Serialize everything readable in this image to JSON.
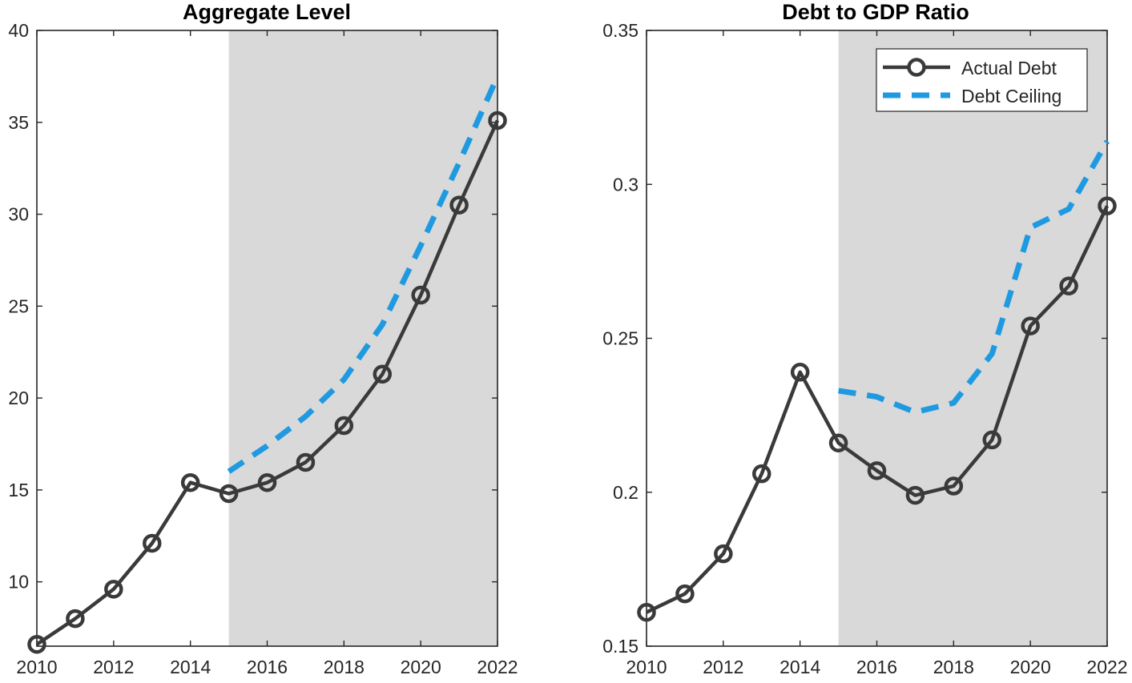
{
  "colors": {
    "actual": "#3a3a3a",
    "ceiling": "#1f9ae0",
    "shade": "#d9d9d9",
    "axis": "#262626"
  },
  "chart_data": [
    {
      "type": "line",
      "title": "Aggregate Level",
      "xlabel": "",
      "ylabel": "",
      "xlim": [
        2010,
        2022
      ],
      "ylim": [
        6.5,
        40
      ],
      "xticks": [
        2010,
        2012,
        2014,
        2016,
        2018,
        2020,
        2022
      ],
      "xtick_labels": [
        "2010",
        "2012",
        "2014",
        "2016",
        "2018",
        "2020",
        "2022"
      ],
      "yticks": [
        10,
        15,
        20,
        25,
        30,
        35,
        40
      ],
      "ytick_labels": [
        "10",
        "15",
        "20",
        "25",
        "30",
        "35",
        "40"
      ],
      "shaded_region": [
        2015,
        2022
      ],
      "grid": false,
      "legend": false,
      "series": [
        {
          "name": "Actual Debt",
          "style": "solid-circle-markers",
          "x": [
            2010,
            2011,
            2012,
            2013,
            2014,
            2015,
            2016,
            2017,
            2018,
            2019,
            2020,
            2021,
            2022
          ],
          "y": [
            6.6,
            8.0,
            9.6,
            12.1,
            15.4,
            14.8,
            15.4,
            16.5,
            18.5,
            21.3,
            25.6,
            30.5,
            35.1
          ]
        },
        {
          "name": "Debt Ceiling",
          "style": "dashed",
          "x": [
            2015,
            2016,
            2017,
            2018,
            2019,
            2020,
            2021,
            2022
          ],
          "y": [
            16.0,
            17.4,
            19.0,
            21.0,
            24.0,
            28.3,
            32.8,
            37.5
          ]
        }
      ]
    },
    {
      "type": "line",
      "title": "Debt to GDP Ratio",
      "xlabel": "",
      "ylabel": "",
      "xlim": [
        2010,
        2022
      ],
      "ylim": [
        0.15,
        0.35
      ],
      "xticks": [
        2010,
        2012,
        2014,
        2016,
        2018,
        2020,
        2022
      ],
      "xtick_labels": [
        "2010",
        "2012",
        "2014",
        "2016",
        "2018",
        "2020",
        "2022"
      ],
      "yticks": [
        0.15,
        0.2,
        0.25,
        0.3,
        0.35
      ],
      "ytick_labels": [
        "0.15",
        "0.2",
        "0.25",
        "0.3",
        "0.35"
      ],
      "shaded_region": [
        2015,
        2022
      ],
      "grid": false,
      "legend": true,
      "legend_position": "top-right",
      "series": [
        {
          "name": "Actual Debt",
          "style": "solid-circle-markers",
          "x": [
            2010,
            2011,
            2012,
            2013,
            2014,
            2015,
            2016,
            2017,
            2018,
            2019,
            2020,
            2021,
            2022
          ],
          "y": [
            0.161,
            0.167,
            0.18,
            0.206,
            0.239,
            0.216,
            0.207,
            0.199,
            0.202,
            0.217,
            0.254,
            0.267,
            0.293
          ]
        },
        {
          "name": "Debt Ceiling",
          "style": "dashed",
          "x": [
            2015,
            2016,
            2017,
            2018,
            2019,
            2020,
            2021,
            2022
          ],
          "y": [
            0.233,
            0.231,
            0.226,
            0.229,
            0.245,
            0.286,
            0.292,
            0.314
          ]
        }
      ]
    }
  ]
}
